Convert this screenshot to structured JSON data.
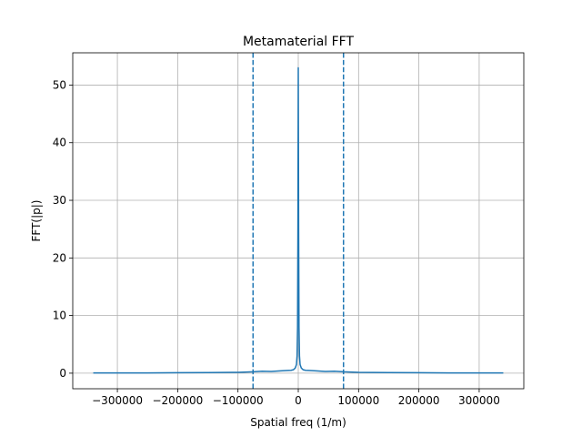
{
  "chart_data": {
    "type": "line",
    "title": "Metamaterial FFT",
    "xlabel": "Spatial freq (1/m)",
    "ylabel": "FFT(|p|)",
    "xlim": [
      -374000,
      374000
    ],
    "ylim": [
      -2.7,
      55.6
    ],
    "xticks": [
      -300000,
      -200000,
      -100000,
      0,
      100000,
      200000,
      300000
    ],
    "xtick_labels": [
      "−300000",
      "−200000",
      "−100000",
      "0",
      "100000",
      "200000",
      "300000"
    ],
    "yticks": [
      0,
      10,
      20,
      30,
      40,
      50
    ],
    "ytick_labels": [
      "0",
      "10",
      "20",
      "30",
      "40",
      "50"
    ],
    "grid": true,
    "series": [
      {
        "color": "#1f77b4",
        "points": [
          [
            -340000,
            0.05
          ],
          [
            -250000,
            0.05
          ],
          [
            -200000,
            0.08
          ],
          [
            -150000,
            0.1
          ],
          [
            -100000,
            0.15
          ],
          [
            -75000,
            0.25
          ],
          [
            -60000,
            0.35
          ],
          [
            -45000,
            0.3
          ],
          [
            -30000,
            0.4
          ],
          [
            -20000,
            0.45
          ],
          [
            -12000,
            0.5
          ],
          [
            -8000,
            0.6
          ],
          [
            -5000,
            0.9
          ],
          [
            -3000,
            1.5
          ],
          [
            -2000,
            3.0
          ],
          [
            -1200,
            8.0
          ],
          [
            -600,
            25.0
          ],
          [
            0,
            53.0
          ],
          [
            600,
            25.0
          ],
          [
            1200,
            8.0
          ],
          [
            2000,
            3.0
          ],
          [
            3000,
            1.5
          ],
          [
            5000,
            0.9
          ],
          [
            8000,
            0.6
          ],
          [
            12000,
            0.5
          ],
          [
            20000,
            0.45
          ],
          [
            30000,
            0.4
          ],
          [
            45000,
            0.3
          ],
          [
            60000,
            0.35
          ],
          [
            75000,
            0.25
          ],
          [
            100000,
            0.15
          ],
          [
            150000,
            0.1
          ],
          [
            200000,
            0.08
          ],
          [
            250000,
            0.05
          ],
          [
            340000,
            0.05
          ]
        ]
      }
    ],
    "vlines": [
      {
        "x": -75000,
        "style": "dashed",
        "color": "#1f77b4"
      },
      {
        "x": 75000,
        "style": "dashed",
        "color": "#1f77b4"
      }
    ]
  }
}
